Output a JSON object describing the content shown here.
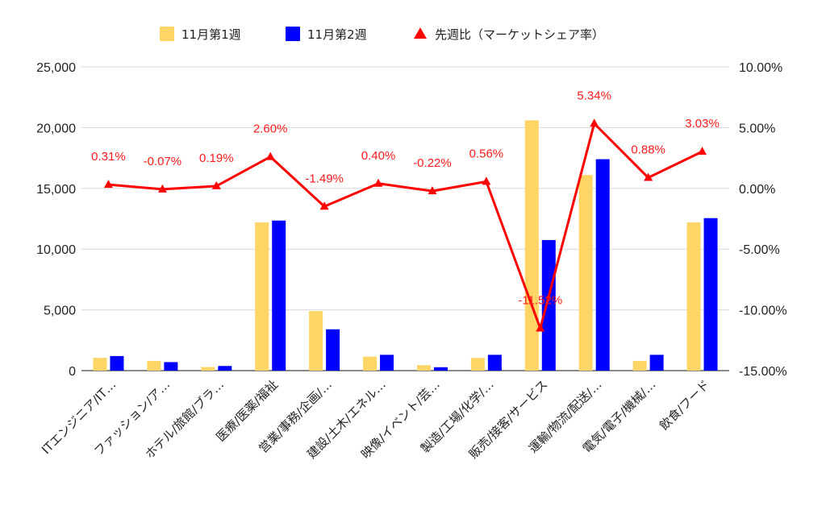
{
  "chart_data": {
    "type": "bar",
    "categories": [
      "ITエンジニア/IT…",
      "ファッション/ア…",
      "ホテル/旅館/ブラ…",
      "医療/医薬/福祉",
      "営業/事務/企画/…",
      "建設/土木/エネル…",
      "映像/イベント/芸…",
      "製造/工場/化学/…",
      "販売/接客/サービス",
      "運輸/物流/配送/…",
      "電気/電子/機械/…",
      "飲食/フード"
    ],
    "series": [
      {
        "name": "11月第1週",
        "type": "bar",
        "axis": "left",
        "color": "#ffd666",
        "values": [
          1050,
          800,
          300,
          12200,
          4900,
          1150,
          450,
          1050,
          20600,
          16100,
          800,
          12200
        ]
      },
      {
        "name": "11月第2週",
        "type": "bar",
        "axis": "left",
        "color": "#0000ff",
        "values": [
          1200,
          700,
          380,
          12350,
          3400,
          1300,
          280,
          1300,
          10750,
          17400,
          1300,
          12550
        ]
      },
      {
        "name": "先週比（マーケットシェア率）",
        "type": "line",
        "axis": "right",
        "color": "#ff0000",
        "values": [
          0.31,
          -0.07,
          0.19,
          2.6,
          -1.49,
          0.4,
          -0.22,
          0.56,
          -11.52,
          5.34,
          0.88,
          3.03
        ],
        "labels": [
          "0.31%",
          "-0.07%",
          "0.19%",
          "2.60%",
          "-1.49%",
          "0.40%",
          "-0.22%",
          "0.56%",
          "-11.52%",
          "5.34%",
          "0.88%",
          "3.03%"
        ]
      }
    ],
    "y_left": {
      "range": [
        0,
        25000
      ],
      "ticks": [
        0,
        5000,
        10000,
        15000,
        20000,
        25000
      ],
      "tick_labels": [
        "0",
        "5,000",
        "10,000",
        "15,000",
        "20,000",
        "25,000"
      ]
    },
    "y_right": {
      "range": [
        -15,
        10
      ],
      "ticks": [
        -15,
        -10,
        -5,
        0,
        5,
        10
      ],
      "tick_labels": [
        "-15.00%",
        "-10.00%",
        "-5.00%",
        "0.00%",
        "5.00%",
        "10.00%"
      ]
    },
    "grid": true,
    "legend_position": "top-center",
    "title": "",
    "xlabel": "",
    "ylabel": ""
  }
}
